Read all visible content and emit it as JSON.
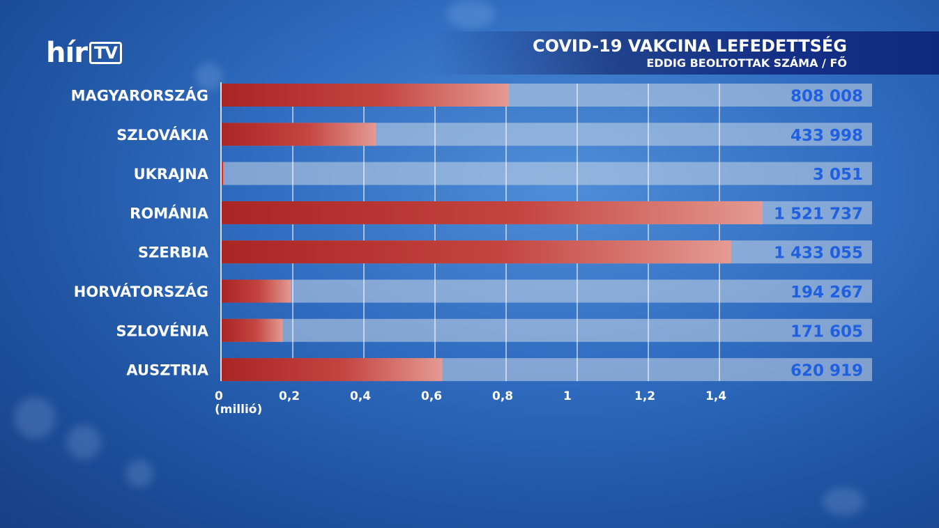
{
  "channel": {
    "logo_main": "hír",
    "logo_badge": "TV"
  },
  "colors": {
    "bar": "#b8302e",
    "bar_light": "#e8a29c",
    "track": "#c9d6e6",
    "value": "#1f5fe0"
  },
  "chart_data": {
    "type": "bar",
    "orientation": "horizontal",
    "title": "COVID-19 VAKCINA LEFEDETTSÉG",
    "subtitle": "EDDIG BEOLTOTTAK SZÁMA / FŐ",
    "unit_label": "(millió)",
    "categories": [
      "MAGYARORSZÁG",
      "SZLOVÁKIA",
      "UKRAJNA",
      "ROMÁNIA",
      "SZERBIA",
      "HORVÁTORSZÁG",
      "SZLOVÉNIA",
      "AUSZTRIA"
    ],
    "values": [
      808008,
      433998,
      3051,
      1521737,
      1433055,
      194267,
      171605,
      620919
    ],
    "value_labels": [
      "808 008",
      "433 998",
      "3 051",
      "1 521 737",
      "1 433 055",
      "194 267",
      "171 605",
      "620 919"
    ],
    "x_ticks": [
      0,
      0.2,
      0.4,
      0.6,
      0.8,
      1,
      1.2,
      1.4
    ],
    "x_tick_labels": [
      "0",
      "0,2",
      "0,4",
      "0,6",
      "0,8",
      "1",
      "1,2",
      "1,4"
    ],
    "xlim": [
      0,
      1.83
    ],
    "grid": true
  }
}
